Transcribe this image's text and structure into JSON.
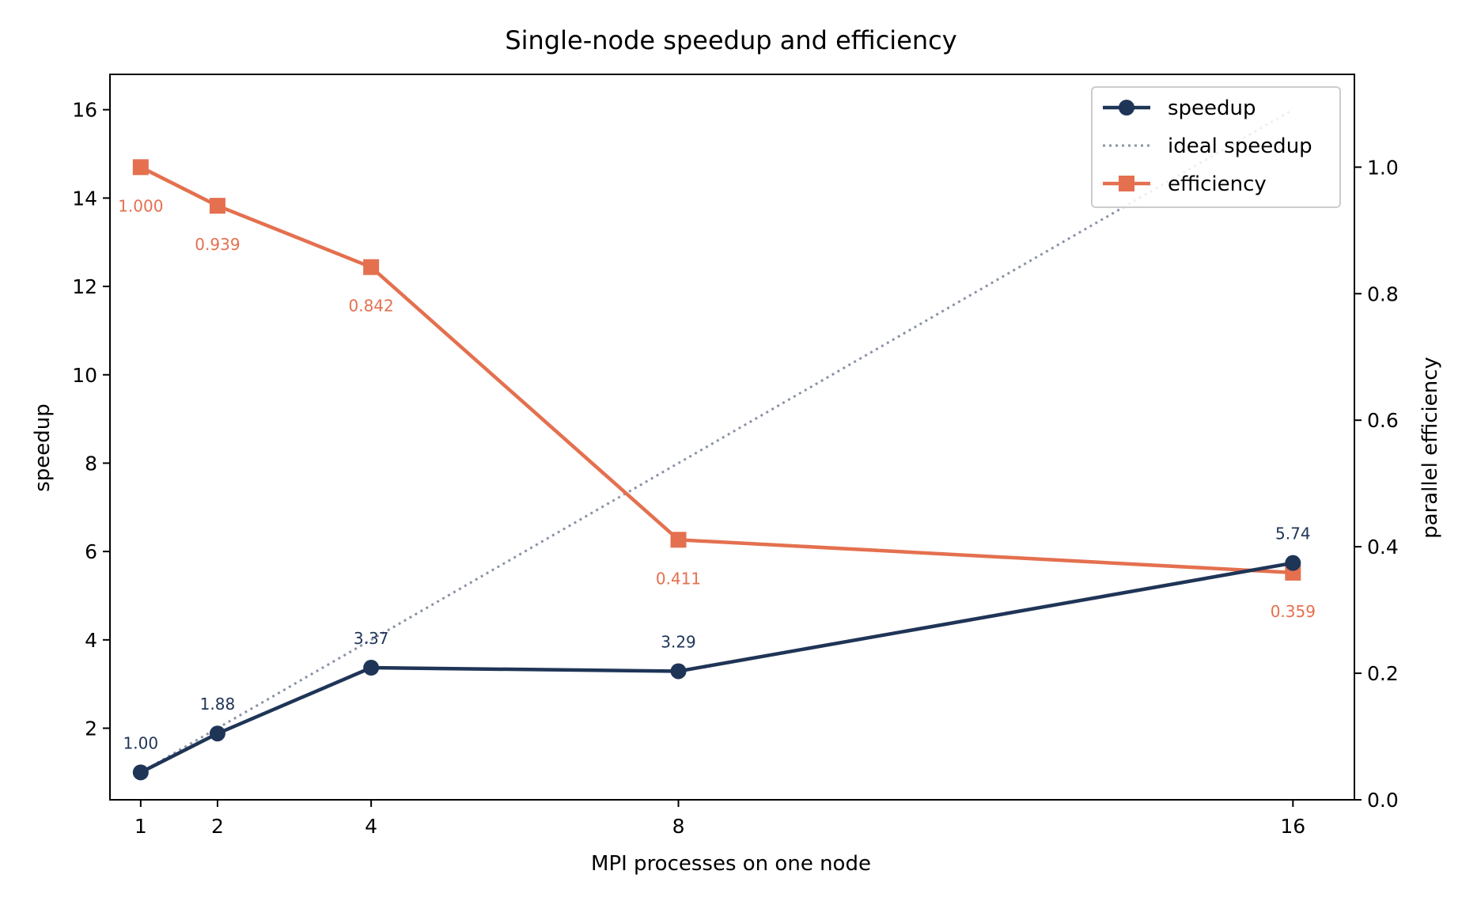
{
  "chart_data": {
    "type": "line",
    "title": "Single-node speedup and efficiency",
    "xlabel": "MPI processes on one node",
    "ylabel": "speedup",
    "y2label": "parallel efficiency",
    "x": [
      1,
      2,
      4,
      8,
      16
    ],
    "xticks": [
      "1",
      "2",
      "4",
      "8",
      "16"
    ],
    "xlim": [
      0.6,
      16.8
    ],
    "ylim": [
      0.38,
      16.8
    ],
    "y2lim": [
      0,
      1.1467
    ],
    "yticks": [
      "2",
      "4",
      "6",
      "8",
      "10",
      "12",
      "14",
      "16"
    ],
    "y2ticks": [
      "0.0",
      "0.2",
      "0.4",
      "0.6",
      "0.8",
      "1.0"
    ],
    "legend_position": "top-right",
    "grid": false,
    "series": [
      {
        "name": "speedup",
        "axis": "left",
        "values": [
          1.0,
          1.88,
          3.37,
          3.29,
          5.74
        ],
        "labels": [
          "1.00",
          "1.88",
          "3.37",
          "3.29",
          "5.74"
        ],
        "color": "#1f3557",
        "marker": "circle"
      },
      {
        "name": "ideal speedup",
        "axis": "left",
        "values": [
          1,
          2,
          4,
          8,
          16
        ],
        "color": "#8a93a6",
        "style": "dotted"
      },
      {
        "name": "efficiency",
        "axis": "right",
        "values": [
          1.0,
          0.939,
          0.842,
          0.411,
          0.359
        ],
        "labels": [
          "1.000",
          "0.939",
          "0.842",
          "0.411",
          "0.359"
        ],
        "color": "#e4704f",
        "marker": "square"
      }
    ]
  }
}
